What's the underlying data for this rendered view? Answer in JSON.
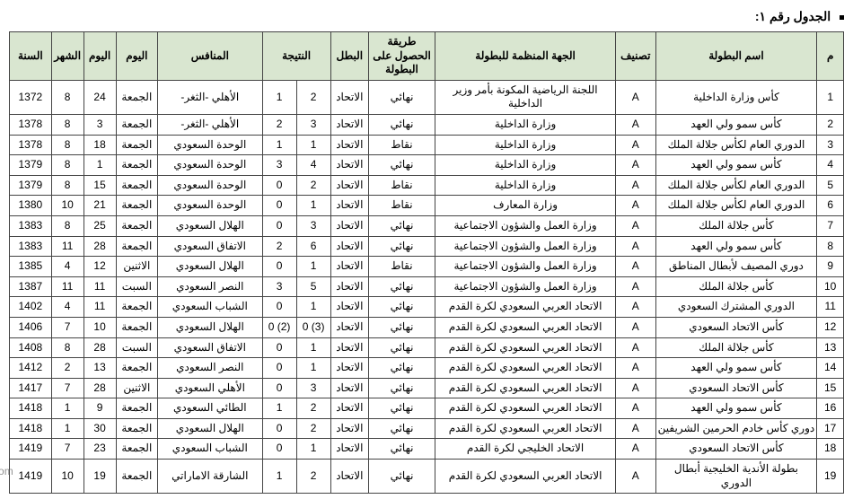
{
  "title": "الجدول رقم ١:",
  "watermark": "arriyadiyah.com",
  "colors": {
    "header_bg": "#d9e6d0",
    "border": "#444444"
  },
  "columns": [
    "م",
    "اسم البطولة",
    "تصنيف",
    "الجهة المنظمة للبطولة",
    "طريقة الحصول على البطولة",
    "البطل",
    "النتيجة",
    "",
    "المنافس",
    "اليوم",
    "اليوم",
    "الشهر",
    "السنة"
  ],
  "rows": [
    {
      "i": "1",
      "name": "كأس وزارة الداخلية",
      "cls": "A",
      "org": "اللجنة الرياضية المكونة بأمر وزير الداخلية",
      "method": "نهائي",
      "champ": "الاتحاد",
      "r1": "2",
      "r2": "1",
      "opp": "الأهلي -الثغر-",
      "dayn": "الجمعة",
      "dnum": "24",
      "mon": "8",
      "yr": "1372"
    },
    {
      "i": "2",
      "name": "كأس سمو ولي العهد",
      "cls": "A",
      "org": "وزارة الداخلية",
      "method": "نهائي",
      "champ": "الاتحاد",
      "r1": "3",
      "r2": "2",
      "opp": "الأهلي -الثغر-",
      "dayn": "الجمعة",
      "dnum": "3",
      "mon": "8",
      "yr": "1378"
    },
    {
      "i": "3",
      "name": "الدوري العام لكأس جلالة الملك",
      "cls": "A",
      "org": "وزارة الداخلية",
      "method": "نقاط",
      "champ": "الاتحاد",
      "r1": "1",
      "r2": "1",
      "opp": "الوحدة السعودي",
      "dayn": "الجمعة",
      "dnum": "18",
      "mon": "8",
      "yr": "1378"
    },
    {
      "i": "4",
      "name": "كأس سمو ولي العهد",
      "cls": "A",
      "org": "وزارة الداخلية",
      "method": "نهائي",
      "champ": "الاتحاد",
      "r1": "4",
      "r2": "3",
      "opp": "الوحدة السعودي",
      "dayn": "الجمعة",
      "dnum": "1",
      "mon": "8",
      "yr": "1379"
    },
    {
      "i": "5",
      "name": "الدوري العام لكأس جلالة الملك",
      "cls": "A",
      "org": "وزارة الداخلية",
      "method": "نقاط",
      "champ": "الاتحاد",
      "r1": "2",
      "r2": "0",
      "opp": "الوحدة السعودي",
      "dayn": "الجمعة",
      "dnum": "15",
      "mon": "8",
      "yr": "1379"
    },
    {
      "i": "6",
      "name": "الدوري العام لكأس جلالة الملك",
      "cls": "A",
      "org": "وزارة المعارف",
      "method": "نقاط",
      "champ": "الاتحاد",
      "r1": "1",
      "r2": "0",
      "opp": "الوحدة السعودي",
      "dayn": "الجمعة",
      "dnum": "21",
      "mon": "10",
      "yr": "1380"
    },
    {
      "i": "7",
      "name": "كأس جلالة الملك",
      "cls": "A",
      "org": "وزارة العمل والشؤون الاجتماعية",
      "method": "نهائي",
      "champ": "الاتحاد",
      "r1": "3",
      "r2": "0",
      "opp": "الهلال السعودي",
      "dayn": "الجمعة",
      "dnum": "25",
      "mon": "8",
      "yr": "1383"
    },
    {
      "i": "8",
      "name": "كأس سمو ولي العهد",
      "cls": "A",
      "org": "وزارة العمل والشؤون الاجتماعية",
      "method": "نهائي",
      "champ": "الاتحاد",
      "r1": "6",
      "r2": "2",
      "opp": "الاتفاق السعودي",
      "dayn": "الجمعة",
      "dnum": "28",
      "mon": "11",
      "yr": "1383"
    },
    {
      "i": "9",
      "name": "دوري المصيف لأبطال المناطق",
      "cls": "A",
      "org": "وزارة العمل والشؤون الاجتماعية",
      "method": "نقاط",
      "champ": "الاتحاد",
      "r1": "1",
      "r2": "0",
      "opp": "الهلال السعودي",
      "dayn": "الاثنين",
      "dnum": "12",
      "mon": "4",
      "yr": "1385"
    },
    {
      "i": "10",
      "name": "كأس جلالة الملك",
      "cls": "A",
      "org": "وزارة العمل والشؤون الاجتماعية",
      "method": "نهائي",
      "champ": "الاتحاد",
      "r1": "5",
      "r2": "3",
      "opp": "النصر السعودي",
      "dayn": "السبت",
      "dnum": "11",
      "mon": "11",
      "yr": "1387"
    },
    {
      "i": "11",
      "name": "الدوري المشترك  السعودي",
      "cls": "A",
      "org": "الاتحاد العربي السعودي لكرة القدم",
      "method": "نهائي",
      "champ": "الاتحاد",
      "r1": "1",
      "r2": "0",
      "opp": "الشباب السعودي",
      "dayn": "الجمعة",
      "dnum": "11",
      "mon": "4",
      "yr": "1402"
    },
    {
      "i": "12",
      "name": "كأس الاتحاد السعودي",
      "cls": "A",
      "org": "الاتحاد العربي السعودي لكرة القدم",
      "method": "نهائي",
      "champ": "الاتحاد",
      "r1": "(3) 0",
      "r2": "(2) 0",
      "opp": "الهلال السعودي",
      "dayn": "الجمعة",
      "dnum": "10",
      "mon": "7",
      "yr": "1406"
    },
    {
      "i": "13",
      "name": "كأس جلالة الملك",
      "cls": "A",
      "org": "الاتحاد العربي السعودي لكرة القدم",
      "method": "نهائي",
      "champ": "الاتحاد",
      "r1": "1",
      "r2": "0",
      "opp": "الاتفاق السعودي",
      "dayn": "السبت",
      "dnum": "28",
      "mon": "8",
      "yr": "1408"
    },
    {
      "i": "14",
      "name": "كأس سمو ولي العهد",
      "cls": "A",
      "org": "الاتحاد العربي السعودي لكرة القدم",
      "method": "نهائي",
      "champ": "الاتحاد",
      "r1": "1",
      "r2": "0",
      "opp": "النصر السعودي",
      "dayn": "الجمعة",
      "dnum": "13",
      "mon": "2",
      "yr": "1412"
    },
    {
      "i": "15",
      "name": "كأس الاتحاد السعودي",
      "cls": "A",
      "org": "الاتحاد العربي السعودي لكرة القدم",
      "method": "نهائي",
      "champ": "الاتحاد",
      "r1": "3",
      "r2": "0",
      "opp": "الأهلي السعودي",
      "dayn": "الاثنين",
      "dnum": "28",
      "mon": "7",
      "yr": "1417"
    },
    {
      "i": "16",
      "name": "كأس سمو  ولي العهد",
      "cls": "A",
      "org": "الاتحاد العربي السعودي لكرة القدم",
      "method": "نهائي",
      "champ": "الاتحاد",
      "r1": "2",
      "r2": "1",
      "opp": "الطائي السعودي",
      "dayn": "الجمعة",
      "dnum": "9",
      "mon": "1",
      "yr": "1418"
    },
    {
      "i": "17",
      "name": "دوري كأس خادم الحرمين الشريفين",
      "cls": "A",
      "org": "الاتحاد العربي السعودي لكرة القدم",
      "method": "نهائي",
      "champ": "الاتحاد",
      "r1": "2",
      "r2": "0",
      "opp": "الهلال السعودي",
      "dayn": "الجمعة",
      "dnum": "30",
      "mon": "1",
      "yr": "1418"
    },
    {
      "i": "18",
      "name": "كأس الاتحاد السعودي",
      "cls": "A",
      "org": "الاتحاد الخليجي لكرة القدم",
      "method": "نهائي",
      "champ": "الاتحاد",
      "r1": "1",
      "r2": "0",
      "opp": "الشباب السعودي",
      "dayn": "الجمعة",
      "dnum": "23",
      "mon": "7",
      "yr": "1419"
    },
    {
      "i": "19",
      "name": "بطولة الأندية الخليجية أبطال الدوري",
      "cls": "A",
      "org": "الاتحاد العربي السعودي لكرة القدم",
      "method": "نهائي",
      "champ": "الاتحاد",
      "r1": "2",
      "r2": "1",
      "opp": "الشارقة الاماراتي",
      "dayn": "الجمعة",
      "dnum": "19",
      "mon": "10",
      "yr": "1419"
    }
  ]
}
